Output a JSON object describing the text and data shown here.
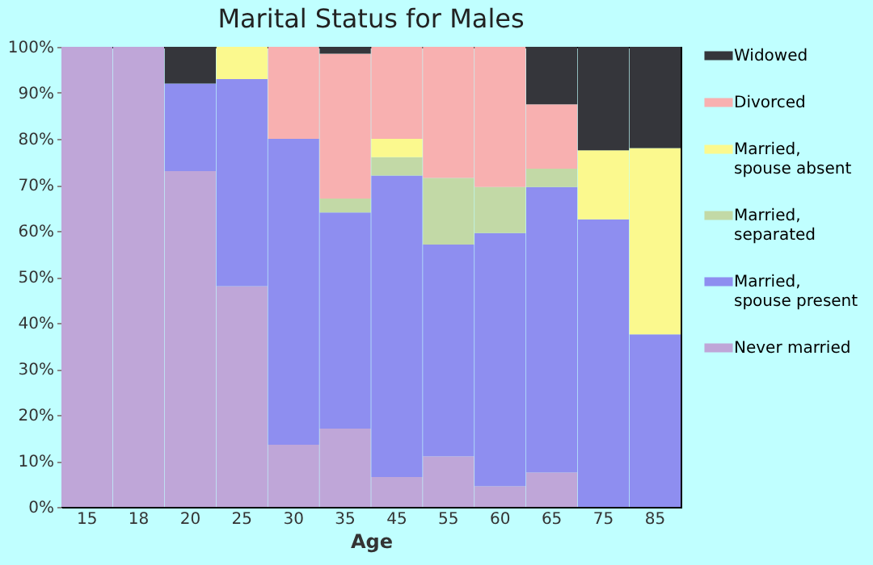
{
  "chart_data": {
    "type": "bar",
    "title": "Marital Status for Males",
    "xlabel": "Age",
    "stacked": true,
    "legend": "right",
    "categories": [
      "15",
      "18",
      "20",
      "25",
      "30",
      "35",
      "45",
      "55",
      "60",
      "65",
      "75",
      "85"
    ],
    "ylim": [
      0,
      100
    ],
    "yticks": [
      {
        "value": 0,
        "label": "0%"
      },
      {
        "value": 10,
        "label": "10%"
      },
      {
        "value": 20,
        "label": "20%"
      },
      {
        "value": 30,
        "label": "30%"
      },
      {
        "value": 40,
        "label": "40%"
      },
      {
        "value": 50,
        "label": "50%"
      },
      {
        "value": 60,
        "label": "60%"
      },
      {
        "value": 70,
        "label": "70%"
      },
      {
        "value": 80,
        "label": "80%"
      },
      {
        "value": 90,
        "label": "90%"
      },
      {
        "value": 100,
        "label": "100%"
      }
    ],
    "series": [
      {
        "name": "Never married",
        "color": "#bfa6d8",
        "values": [
          100,
          100,
          73,
          48,
          13.5,
          17,
          6.5,
          11,
          4.5,
          7.5,
          null,
          null
        ]
      },
      {
        "name": "Married, spouse present",
        "color": "#8e8ef0",
        "values": [
          null,
          null,
          19,
          45,
          66.5,
          47,
          65.5,
          46,
          55,
          62,
          62.5,
          37.5
        ]
      },
      {
        "name": "Married, separated",
        "color": "#c2d9a6",
        "values": [
          null,
          null,
          null,
          null,
          null,
          3,
          4,
          14.5,
          10,
          4,
          null,
          null
        ]
      },
      {
        "name": "Married, spouse absent",
        "color": "#fbf98e",
        "values": [
          null,
          null,
          null,
          7,
          null,
          null,
          4,
          null,
          null,
          null,
          15,
          40.5
        ]
      },
      {
        "name": "Divorced",
        "color": "#f8b0b0",
        "values": [
          null,
          null,
          null,
          null,
          20,
          31.5,
          20,
          28.5,
          30.5,
          14,
          null,
          null
        ]
      },
      {
        "name": "Widowed",
        "color": "#35363b",
        "values": [
          null,
          null,
          8,
          null,
          null,
          1.5,
          null,
          null,
          null,
          12.5,
          22.5,
          22
        ]
      }
    ]
  }
}
